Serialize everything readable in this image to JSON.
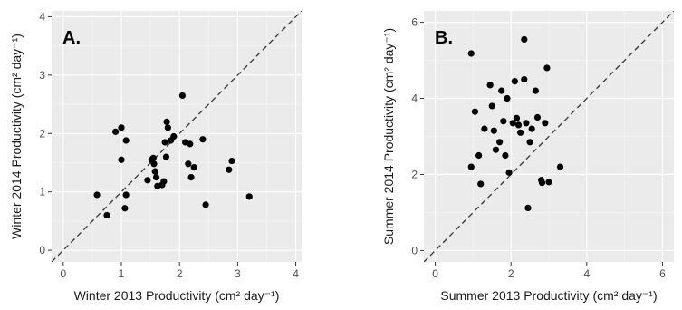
{
  "chart_data": [
    {
      "type": "scatter",
      "panel_label": "A.",
      "xlabel": "Winter 2013 Productivity (cm² day⁻¹)",
      "ylabel": "Winter 2014 Productivity (cm² day⁻¹)",
      "xlim": [
        -0.2,
        4.1
      ],
      "ylim": [
        -0.2,
        4.1
      ],
      "xticks": [
        0,
        1,
        2,
        3,
        4
      ],
      "yticks": [
        0,
        1,
        2,
        3,
        4
      ],
      "grid": true,
      "reference_line": "y = x (dashed)",
      "points": [
        {
          "x": 0.58,
          "y": 0.95
        },
        {
          "x": 0.75,
          "y": 0.6
        },
        {
          "x": 0.9,
          "y": 2.03
        },
        {
          "x": 1.0,
          "y": 2.1
        },
        {
          "x": 1.0,
          "y": 1.55
        },
        {
          "x": 1.08,
          "y": 1.88
        },
        {
          "x": 1.08,
          "y": 0.95
        },
        {
          "x": 1.06,
          "y": 0.72
        },
        {
          "x": 1.45,
          "y": 1.2
        },
        {
          "x": 1.52,
          "y": 1.55
        },
        {
          "x": 1.55,
          "y": 1.58
        },
        {
          "x": 1.56,
          "y": 1.48
        },
        {
          "x": 1.58,
          "y": 1.35
        },
        {
          "x": 1.6,
          "y": 1.25
        },
        {
          "x": 1.62,
          "y": 1.1
        },
        {
          "x": 1.7,
          "y": 1.12
        },
        {
          "x": 1.73,
          "y": 1.18
        },
        {
          "x": 1.75,
          "y": 1.85
        },
        {
          "x": 1.77,
          "y": 1.6
        },
        {
          "x": 1.78,
          "y": 2.2
        },
        {
          "x": 1.8,
          "y": 2.1
        },
        {
          "x": 1.85,
          "y": 1.88
        },
        {
          "x": 1.9,
          "y": 1.95
        },
        {
          "x": 2.05,
          "y": 2.65
        },
        {
          "x": 2.1,
          "y": 1.85
        },
        {
          "x": 2.15,
          "y": 1.48
        },
        {
          "x": 2.18,
          "y": 1.82
        },
        {
          "x": 2.2,
          "y": 1.25
        },
        {
          "x": 2.25,
          "y": 1.42
        },
        {
          "x": 2.4,
          "y": 1.9
        },
        {
          "x": 2.45,
          "y": 0.78
        },
        {
          "x": 2.85,
          "y": 1.38
        },
        {
          "x": 2.9,
          "y": 1.53
        },
        {
          "x": 3.2,
          "y": 0.92
        }
      ]
    },
    {
      "type": "scatter",
      "panel_label": "B.",
      "xlabel": "Summer 2013 Productivity (cm² day⁻¹)",
      "ylabel": "Summer 2014 Productivity (cm² day⁻¹)",
      "xlim": [
        -0.3,
        6.3
      ],
      "ylim": [
        -0.3,
        6.3
      ],
      "xticks": [
        0,
        2,
        4,
        6
      ],
      "yticks": [
        0,
        2,
        4,
        6
      ],
      "grid": true,
      "reference_line": "y = x (dashed)",
      "points": [
        {
          "x": 0.95,
          "y": 5.18
        },
        {
          "x": 0.95,
          "y": 2.2
        },
        {
          "x": 1.05,
          "y": 3.65
        },
        {
          "x": 1.15,
          "y": 2.5
        },
        {
          "x": 1.2,
          "y": 1.75
        },
        {
          "x": 1.3,
          "y": 3.2
        },
        {
          "x": 1.45,
          "y": 4.35
        },
        {
          "x": 1.5,
          "y": 3.8
        },
        {
          "x": 1.55,
          "y": 3.15
        },
        {
          "x": 1.6,
          "y": 2.65
        },
        {
          "x": 1.7,
          "y": 2.85
        },
        {
          "x": 1.75,
          "y": 4.2
        },
        {
          "x": 1.8,
          "y": 3.4
        },
        {
          "x": 1.85,
          "y": 2.5
        },
        {
          "x": 1.9,
          "y": 4.0
        },
        {
          "x": 1.95,
          "y": 2.05
        },
        {
          "x": 2.05,
          "y": 3.35
        },
        {
          "x": 2.1,
          "y": 4.45
        },
        {
          "x": 2.15,
          "y": 3.48
        },
        {
          "x": 2.2,
          "y": 3.3
        },
        {
          "x": 2.25,
          "y": 3.1
        },
        {
          "x": 2.35,
          "y": 5.55
        },
        {
          "x": 2.35,
          "y": 4.5
        },
        {
          "x": 2.4,
          "y": 3.35
        },
        {
          "x": 2.45,
          "y": 1.12
        },
        {
          "x": 2.5,
          "y": 2.85
        },
        {
          "x": 2.55,
          "y": 3.2
        },
        {
          "x": 2.65,
          "y": 4.2
        },
        {
          "x": 2.7,
          "y": 3.5
        },
        {
          "x": 2.8,
          "y": 1.85
        },
        {
          "x": 2.82,
          "y": 1.78
        },
        {
          "x": 2.9,
          "y": 3.35
        },
        {
          "x": 2.95,
          "y": 4.8
        },
        {
          "x": 3.0,
          "y": 1.8
        },
        {
          "x": 3.3,
          "y": 2.2
        }
      ]
    }
  ]
}
